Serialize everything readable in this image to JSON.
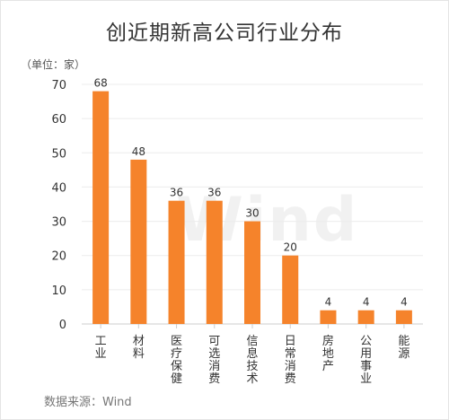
{
  "chart_data": {
    "type": "bar",
    "title": "创近期新高公司行业分布",
    "unit_label": "（单位：家）",
    "categories": [
      "工业",
      "材料",
      "医疗保健",
      "可选消费",
      "信息技术",
      "日常消费",
      "房地产",
      "公用事业",
      "能源"
    ],
    "values": [
      68,
      48,
      36,
      36,
      30,
      20,
      4,
      4,
      4
    ],
    "ylim": [
      0,
      70
    ],
    "yticks": [
      "0",
      "10",
      "20",
      "30",
      "40",
      "50",
      "60",
      "70"
    ],
    "grid": true,
    "bar_color": "#F5832B",
    "source": "数据来源：Wind"
  },
  "watermark": "Wind"
}
